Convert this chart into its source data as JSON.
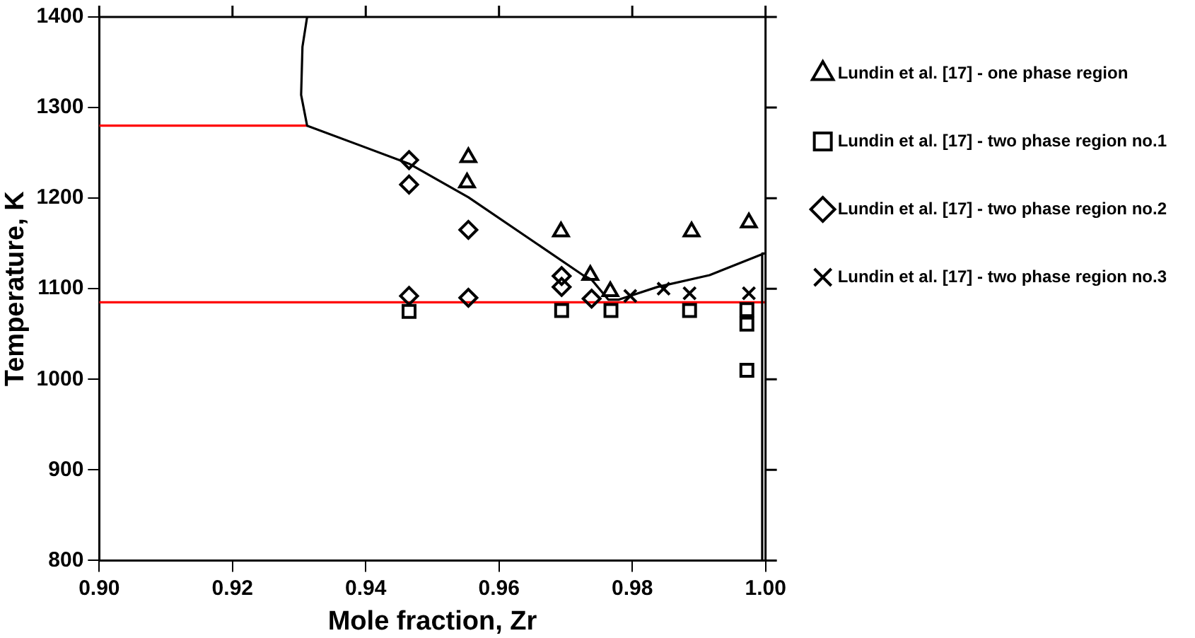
{
  "chart_data": {
    "type": "scatter",
    "xlabel": "Mole fraction, Zr",
    "ylabel": "Temperature, K",
    "xlim": [
      0.9,
      1.0
    ],
    "ylim": [
      800,
      1400
    ],
    "xticks": [
      {
        "value": 0.9,
        "label": "0.90"
      },
      0.92,
      0.94,
      0.96,
      0.98,
      {
        "value": 1.0,
        "label": "1.00"
      }
    ],
    "yticks": [
      800,
      900,
      1000,
      1100,
      1200,
      1300,
      1400
    ],
    "grid": false,
    "legend": "right",
    "series": [
      {
        "name": "Lundin et al. [17] - one phase region",
        "color": "#000000",
        "marker": "triangle",
        "x": [
          0.9554,
          0.9552,
          0.9693,
          0.9889,
          0.9975,
          0.9737,
          0.9767
        ],
        "values": [
          1245,
          1217,
          1163,
          1163,
          1173,
          1115,
          1097
        ]
      },
      {
        "name": "Lundin et al. [17] - two phase region no.1",
        "color": "#000000",
        "marker": "square",
        "x": [
          0.9465,
          0.9694,
          0.9768,
          0.9886,
          0.9972,
          0.9972,
          0.9972
        ],
        "values": [
          1075,
          1076,
          1076,
          1076,
          1077,
          1061,
          1010
        ]
      },
      {
        "name": "Lundin et al. [17] - two phase region no.2",
        "color": "#000000",
        "marker": "diamond",
        "x": [
          0.9465,
          0.9465,
          0.9554,
          0.9694,
          0.9694,
          0.9739,
          0.9465,
          0.9554
        ],
        "values": [
          1242,
          1215,
          1165,
          1114,
          1102,
          1089,
          1092,
          1090
        ]
      },
      {
        "name": "Lundin et al. [17] - two phase region no.3",
        "color": "#000000",
        "marker": "cross",
        "x": [
          0.9797,
          0.9847,
          0.9886,
          0.9975
        ],
        "values": [
          1092,
          1100,
          1095,
          1095
        ]
      },
      {
        "type": "line",
        "color": "#000000",
        "marker": "none",
        "x": [
          0.9312,
          0.9305,
          0.9303,
          0.9312,
          0.9465,
          0.9554,
          0.9726,
          0.9739,
          0.9764,
          0.978,
          0.9838,
          0.9916,
          0.9998,
          0.9995,
          0.9995
        ],
        "values": [
          1400,
          1367,
          1314,
          1280,
          1238,
          1201,
          1115,
          1110,
          1088,
          1088,
          1102,
          1115,
          1139,
          1139,
          800
        ]
      },
      {
        "type": "line",
        "color": "#ff0000",
        "marker": "none",
        "x": [
          0.9,
          0.9312
        ],
        "values": [
          1280,
          1280
        ]
      },
      {
        "type": "line",
        "color": "#ff0000",
        "marker": "none",
        "x": [
          0.9,
          1.0
        ],
        "values": [
          1085,
          1085
        ]
      }
    ]
  }
}
